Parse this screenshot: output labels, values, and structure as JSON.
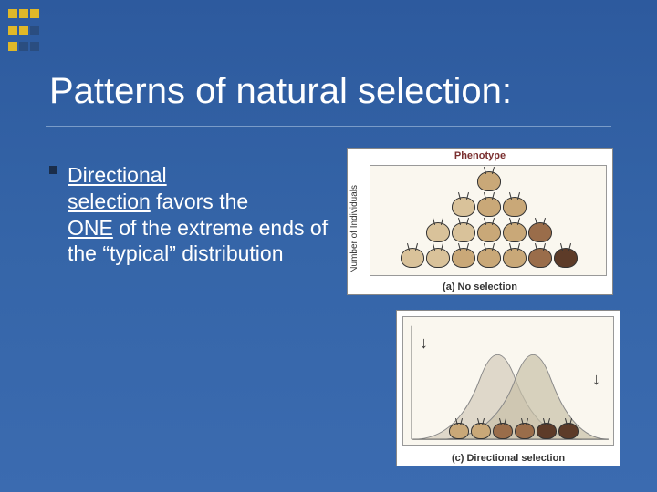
{
  "corner": {
    "colors": [
      "#e0b828",
      "#e0b828",
      "#e0b828",
      "#e0b828",
      "#e0b828",
      "#2a4d80",
      "#e0b828",
      "#2a4d80",
      "#2a4d80"
    ]
  },
  "title": "Patterns of natural selection:",
  "bullet": {
    "bold1": "Directional",
    "bold2": "selection",
    "mid1": " favors the ",
    "bold3": "ONE",
    "rest": " of the extreme ends of the “typical” distribution"
  },
  "fig1": {
    "phenotype": "Phenotype",
    "ylabel": "Number of Individuals",
    "caption": "(a) No selection",
    "beetle_colors": {
      "light": "#d9c29a",
      "mid": "#c9a878",
      "dark": "#9a6d4a",
      "vdark": "#5d3b28"
    },
    "pyramid": [
      [
        "mid"
      ],
      [
        "light",
        "mid",
        "mid"
      ],
      [
        "light",
        "light",
        "mid",
        "mid",
        "dark"
      ],
      [
        "light",
        "light",
        "mid",
        "mid",
        "mid",
        "dark",
        "vdark"
      ]
    ]
  },
  "fig2": {
    "caption": "(c) Directional selection",
    "curve_color_before": "#d8d0c0",
    "curve_color_after": "#c8c0a8",
    "beetle_colors": [
      "#c9a878",
      "#c9a878",
      "#9a6d4a",
      "#9a6d4a",
      "#5d3b28",
      "#5d3b28"
    ]
  }
}
